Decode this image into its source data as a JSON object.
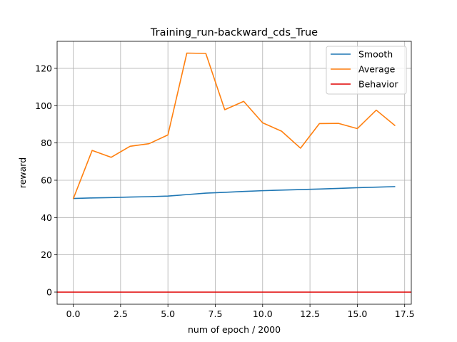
{
  "chart_data": {
    "type": "line",
    "title": "Training_run-backward_cds_True",
    "xlabel": "num of epoch / 2000",
    "ylabel": "reward",
    "xlim": [
      -0.85,
      17.85
    ],
    "ylim": [
      -6.5,
      134.5
    ],
    "xticks": [
      0.0,
      2.5,
      5.0,
      7.5,
      10.0,
      12.5,
      15.0,
      17.5
    ],
    "xtick_labels": [
      "0.0",
      "2.5",
      "5.0",
      "7.5",
      "10.0",
      "12.5",
      "15.0",
      "17.5"
    ],
    "yticks": [
      0,
      20,
      40,
      60,
      80,
      100,
      120
    ],
    "ytick_labels": [
      "0",
      "20",
      "40",
      "60",
      "80",
      "100",
      "120"
    ],
    "grid": true,
    "legend_position": "top-right",
    "x": [
      0,
      1,
      2,
      3,
      4,
      5,
      6,
      7,
      8,
      9,
      10,
      11,
      12,
      13,
      14,
      15,
      16,
      17
    ],
    "series": [
      {
        "name": "Smooth",
        "color": "#1f77b4",
        "values": [
          50.2,
          50.5,
          50.7,
          51.0,
          51.2,
          51.5,
          52.3,
          53.1,
          53.5,
          54.0,
          54.4,
          54.7,
          55.0,
          55.3,
          55.6,
          56.0,
          56.3,
          56.6
        ]
      },
      {
        "name": "Average",
        "color": "#ff7f0e",
        "values": [
          50.0,
          76.0,
          72.3,
          78.2,
          79.6,
          84.3,
          128.2,
          128.0,
          97.8,
          102.3,
          90.8,
          86.3,
          77.2,
          90.4,
          90.5,
          87.7,
          97.6,
          89.2
        ]
      },
      {
        "name": "Behavior",
        "color": "#e00000",
        "values": [
          0,
          0,
          0,
          0,
          0,
          0,
          0,
          0,
          0,
          0,
          0,
          0,
          0,
          0,
          0,
          0,
          0,
          0
        ]
      }
    ]
  }
}
